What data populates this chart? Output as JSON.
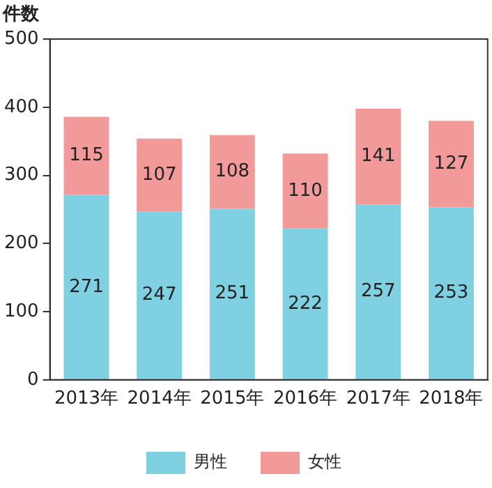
{
  "chart_data": {
    "type": "bar",
    "ylabel": "件数",
    "categories": [
      "2013年",
      "2014年",
      "2015年",
      "2016年",
      "2017年",
      "2018年"
    ],
    "series": [
      {
        "name": "男性",
        "color": "#7fd1e1",
        "values": [
          271,
          247,
          251,
          222,
          257,
          253
        ]
      },
      {
        "name": "女性",
        "color": "#f29a9a",
        "values": [
          115,
          107,
          108,
          110,
          141,
          127
        ]
      }
    ],
    "stacked": true,
    "ylim": [
      0,
      500
    ],
    "yticks": [
      0,
      100,
      200,
      300,
      400,
      500
    ],
    "grid": false,
    "legend": "bottom",
    "data_labels": true
  }
}
